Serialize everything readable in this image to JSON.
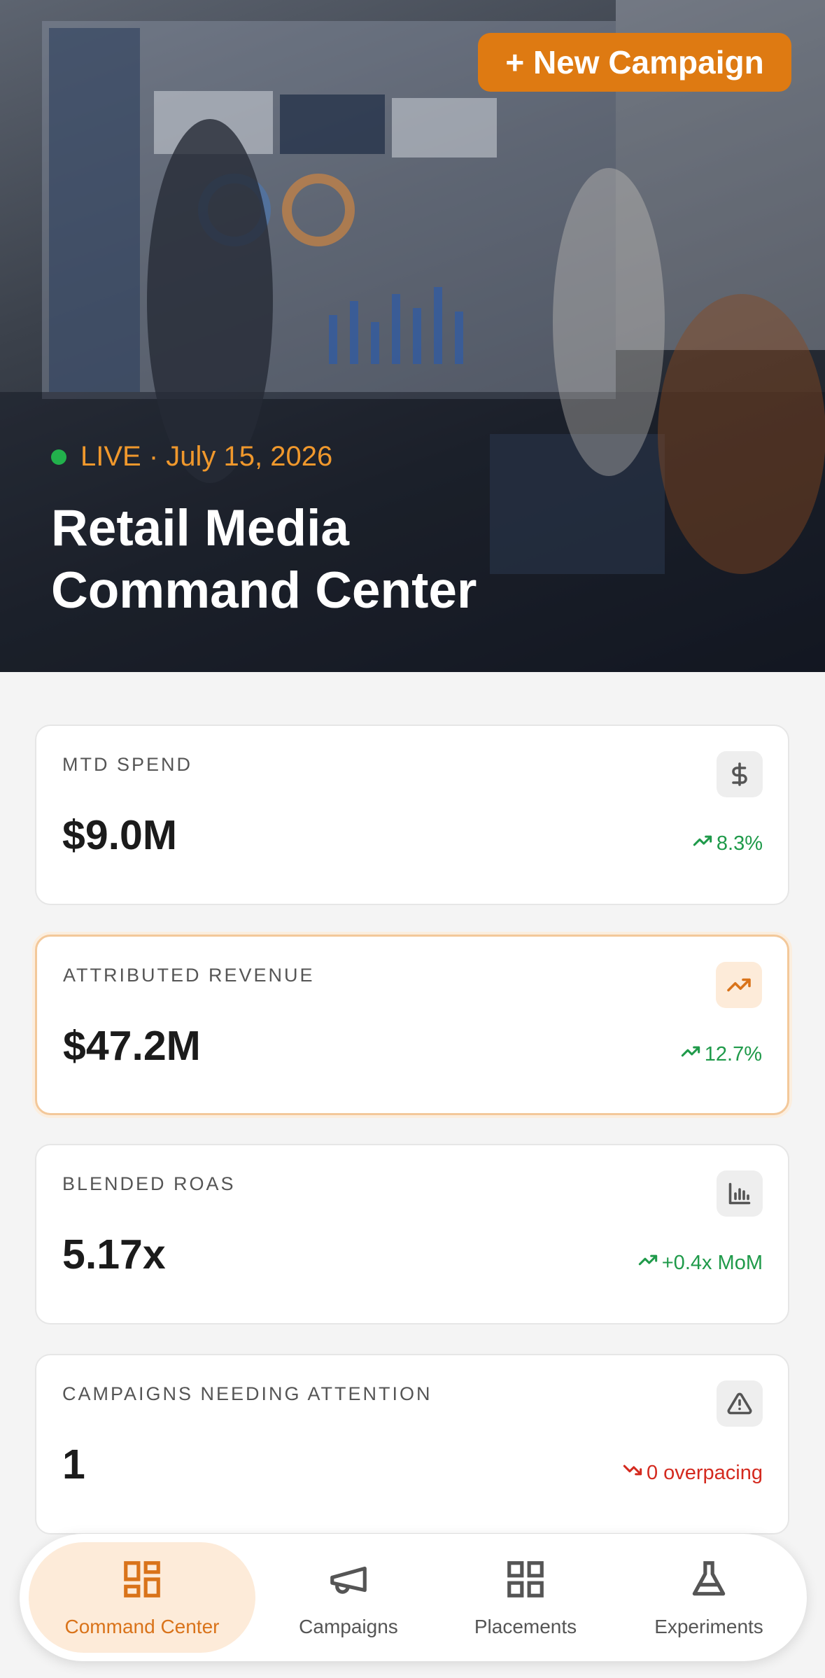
{
  "header": {
    "button": "+ New Campaign",
    "status": "LIVE · July 15, 2026",
    "title_line1": "Retail Media",
    "title_line2": "Command Center"
  },
  "cards": [
    {
      "label": "MTD SPEND",
      "value": "$9.0M",
      "delta": "8.3%"
    },
    {
      "label": "ATTRIBUTED REVENUE",
      "value": "$47.2M",
      "delta": "12.7%"
    },
    {
      "label": "BLENDED ROAS",
      "value": "5.17x",
      "delta": "+0.4x MoM"
    },
    {
      "label": "CAMPAIGNS NEEDING ATTENTION",
      "value": "1",
      "delta": "0 overpacing"
    }
  ],
  "nav": [
    "Command Center",
    "Campaigns",
    "Placements",
    "Experiments"
  ]
}
